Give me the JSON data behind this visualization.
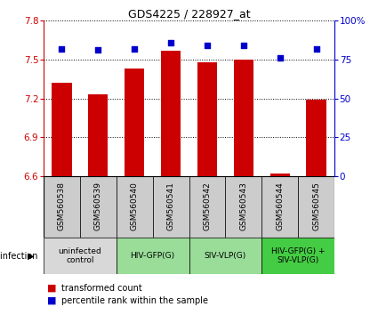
{
  "title": "GDS4225 / 228927_at",
  "samples": [
    "GSM560538",
    "GSM560539",
    "GSM560540",
    "GSM560541",
    "GSM560542",
    "GSM560543",
    "GSM560544",
    "GSM560545"
  ],
  "bar_values": [
    7.32,
    7.23,
    7.43,
    7.57,
    7.48,
    7.5,
    6.62,
    7.19
  ],
  "dot_values": [
    82,
    81,
    82,
    86,
    84,
    84,
    76,
    82
  ],
  "ylim_left": [
    6.6,
    7.8
  ],
  "ylim_right": [
    0,
    100
  ],
  "yticks_left": [
    6.6,
    6.9,
    7.2,
    7.5,
    7.8
  ],
  "yticks_right": [
    0,
    25,
    50,
    75,
    100
  ],
  "ytick_labels_left": [
    "6.6",
    "6.9",
    "7.2",
    "7.5",
    "7.8"
  ],
  "ytick_labels_right": [
    "0",
    "25",
    "50",
    "75",
    "100%"
  ],
  "bar_color": "#cc0000",
  "dot_color": "#0000cc",
  "grid_color": "#000000",
  "infection_groups": [
    {
      "label": "uninfected\ncontrol",
      "start": 0,
      "end": 2,
      "color": "#d8d8d8"
    },
    {
      "label": "HIV-GFP(G)",
      "start": 2,
      "end": 4,
      "color": "#99dd99"
    },
    {
      "label": "SIV-VLP(G)",
      "start": 4,
      "end": 6,
      "color": "#99dd99"
    },
    {
      "label": "HIV-GFP(G) +\nSIV-VLP(G)",
      "start": 6,
      "end": 8,
      "color": "#44cc44"
    }
  ],
  "sample_area_color": "#cccccc",
  "bar_width": 0.55,
  "dot_size": 25,
  "title_fontsize": 9,
  "tick_fontsize": 7.5,
  "label_fontsize": 6.5,
  "legend_fontsize": 7
}
